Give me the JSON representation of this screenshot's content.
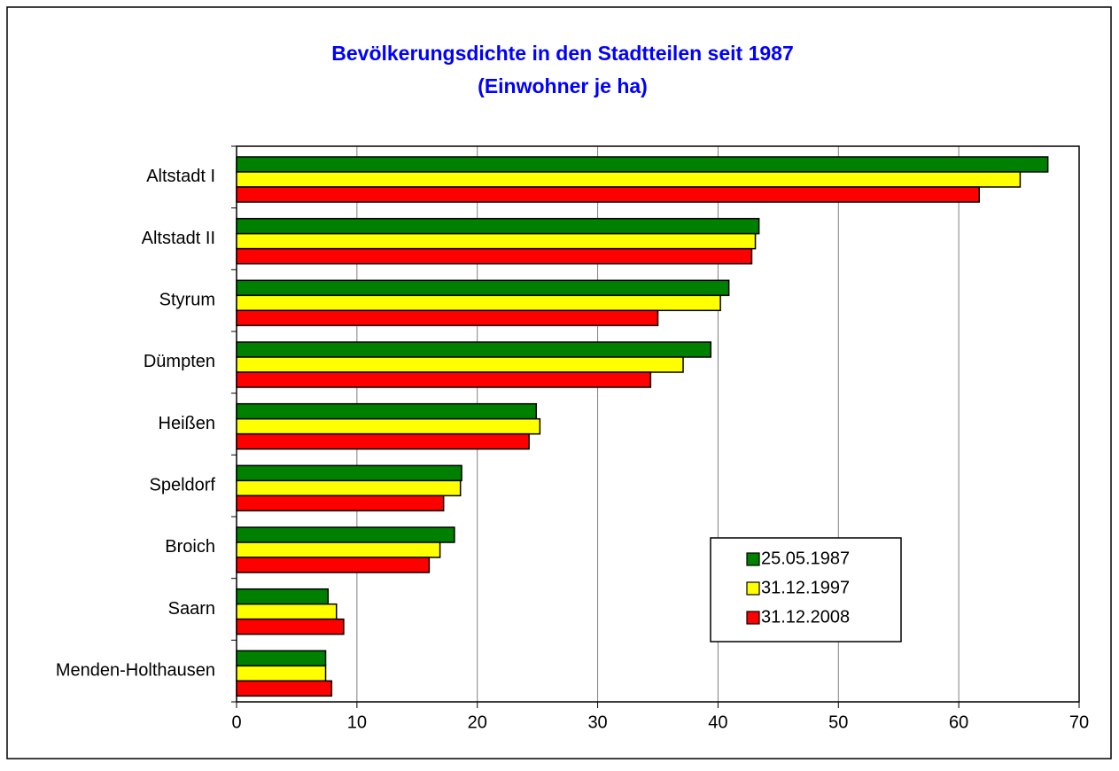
{
  "chart_data": {
    "type": "hbar",
    "title": "Bevölkerungsdichte in den Stadtteilen seit 1987",
    "subtitle": "(Einwohner je ha)",
    "categories": [
      "Altstadt I",
      "Altstadt II",
      "Styrum",
      "Dümpten",
      "Heißen",
      "Speldorf",
      "Broich",
      "Saarn",
      "Menden-Holthausen"
    ],
    "series": [
      {
        "name": "25.05.1987",
        "color": "#008000",
        "values": [
          67.4,
          43.4,
          40.9,
          39.4,
          24.9,
          18.7,
          18.1,
          7.6,
          7.4
        ]
      },
      {
        "name": "31.12.1997",
        "color": "#ffff00",
        "values": [
          65.1,
          43.1,
          40.2,
          37.1,
          25.2,
          18.6,
          16.9,
          8.3,
          7.4
        ]
      },
      {
        "name": "31.12.2008",
        "color": "#ff0000",
        "values": [
          61.7,
          42.8,
          35.0,
          34.4,
          24.3,
          17.2,
          16.0,
          8.9,
          7.9
        ]
      }
    ],
    "xlim": [
      0,
      70
    ],
    "xticks": [
      0,
      10,
      20,
      30,
      40,
      50,
      60,
      70
    ],
    "grid": true,
    "legend": "lower right"
  }
}
